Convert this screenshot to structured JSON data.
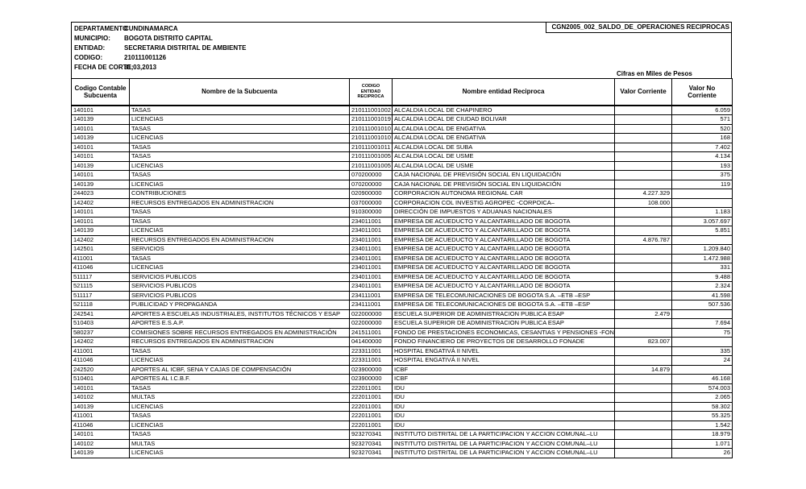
{
  "report": {
    "title": "CGN2005_002_SALDO_DE_OPERACIONES RECIPROCAS",
    "units_note": "Cifras en Miles de Pesos"
  },
  "meta": {
    "rows": [
      {
        "label": "DEPARTAMENTO",
        "value": "CUNDINAMARCA"
      },
      {
        "label": "MUNICIPIO:",
        "value": "BOGOTA DISTRITO CAPITAL"
      },
      {
        "label": "ENTIDAD:",
        "value": "SECRETARIA DISTRITAL DE AMBIENTE"
      },
      {
        "label": "CODIGO:",
        "value": "210111001126"
      },
      {
        "label": "FECHA DE CORTE:",
        "value": "31,03,2013"
      }
    ]
  },
  "table": {
    "columns": [
      "Codigo Contable Subcuenta",
      "Nombre de la Subcuenta",
      "CODIGO ENTIDAD RECIPROCA",
      "Nombre entidad Reciproca",
      "Valor Corriente",
      "Valor No Corriente"
    ],
    "rows": [
      {
        "codigo": "140101",
        "subcuenta": "TASAS",
        "codigo_entidad": "210111001002",
        "entidad": "ALCALDIA LOCAL DE CHAPINERO",
        "valor_corriente": "",
        "valor_no_corriente": "6.059"
      },
      {
        "codigo": "140139",
        "subcuenta": "LICENCIAS",
        "codigo_entidad": "210111001019",
        "entidad": "ALCALDIA LOCAL DE CIUDAD BOLIVAR",
        "valor_corriente": "",
        "valor_no_corriente": "571"
      },
      {
        "codigo": "140101",
        "subcuenta": "TASAS",
        "codigo_entidad": "210111001010",
        "entidad": "ALCALDIA LOCAL DE ENGATIVA",
        "valor_corriente": "",
        "valor_no_corriente": "520"
      },
      {
        "codigo": "140139",
        "subcuenta": "LICENCIAS",
        "codigo_entidad": "210111001010",
        "entidad": "ALCALDIA LOCAL DE ENGATIVA",
        "valor_corriente": "",
        "valor_no_corriente": "168"
      },
      {
        "codigo": "140101",
        "subcuenta": "TASAS",
        "codigo_entidad": "210111001011",
        "entidad": "ALCALDIA LOCAL DE SUBA",
        "valor_corriente": "",
        "valor_no_corriente": "7.402"
      },
      {
        "codigo": "140101",
        "subcuenta": "TASAS",
        "codigo_entidad": "210111001005",
        "entidad": "ALCALDIA LOCAL DE USME",
        "valor_corriente": "",
        "valor_no_corriente": "4.134"
      },
      {
        "codigo": "140139",
        "subcuenta": "LICENCIAS",
        "codigo_entidad": "210111001005",
        "entidad": "ALCALDIA LOCAL DE USME",
        "valor_corriente": "",
        "valor_no_corriente": "193"
      },
      {
        "codigo": "140101",
        "subcuenta": "TASAS",
        "codigo_entidad": "070200000",
        "entidad": "CAJA NACIONAL DE PREVISIÓN SOCIAL EN LIQUIDACIÓN",
        "valor_corriente": "",
        "valor_no_corriente": "375"
      },
      {
        "codigo": "140139",
        "subcuenta": "LICENCIAS",
        "codigo_entidad": "070200000",
        "entidad": "CAJA NACIONAL DE PREVISIÓN SOCIAL EN LIQUIDACIÓN",
        "valor_corriente": "",
        "valor_no_corriente": "119"
      },
      {
        "codigo": "244023",
        "subcuenta": "CONTRIBUCIONES",
        "codigo_entidad": "020900000",
        "entidad": "CORPORACION AUTONOMA REGIONAL CAR",
        "valor_corriente": "4.227.329",
        "valor_no_corriente": ""
      },
      {
        "codigo": "142402",
        "subcuenta": "RECURSOS ENTREGADOS EN ADMINISTRACION",
        "codigo_entidad": "037000000",
        "entidad": "CORPORACION COL INVESTIG AGROPEC -CORPOICA–",
        "valor_corriente": "108.000",
        "valor_no_corriente": ""
      },
      {
        "codigo": "140101",
        "subcuenta": "TASAS",
        "codigo_entidad": "910300000",
        "entidad": "DIRECCIÓN DE IMPUESTOS Y ADUANAS NACIONALES",
        "valor_corriente": "",
        "valor_no_corriente": "1.183"
      },
      {
        "codigo": "140101",
        "subcuenta": "TASAS",
        "codigo_entidad": "234011001",
        "entidad": "EMPRESA DE ACUEDUCTO Y ALCANTARILLADO DE BOGOTA",
        "valor_corriente": "",
        "valor_no_corriente": "3.057.697"
      },
      {
        "codigo": "140139",
        "subcuenta": "LICENCIAS",
        "codigo_entidad": "234011001",
        "entidad": "EMPRESA DE ACUEDUCTO Y ALCANTARILLADO DE BOGOTA",
        "valor_corriente": "",
        "valor_no_corriente": "5.851"
      },
      {
        "codigo": "142402",
        "subcuenta": "RECURSOS ENTREGADOS EN ADMINISTRACION",
        "codigo_entidad": "234011001",
        "entidad": "EMPRESA DE ACUEDUCTO Y ALCANTARILLADO DE BOGOTA",
        "valor_corriente": "4.876.787",
        "valor_no_corriente": ""
      },
      {
        "codigo": "142501",
        "subcuenta": "SERVICIOS",
        "codigo_entidad": "234011001",
        "entidad": "EMPRESA DE ACUEDUCTO Y ALCANTARILLADO DE BOGOTA",
        "valor_corriente": "",
        "valor_no_corriente": "1.209.840"
      },
      {
        "codigo": "411001",
        "subcuenta": "TASAS",
        "codigo_entidad": "234011001",
        "entidad": "EMPRESA DE ACUEDUCTO Y ALCANTARILLADO DE BOGOTA",
        "valor_corriente": "",
        "valor_no_corriente": "1.472.988"
      },
      {
        "codigo": "411046",
        "subcuenta": "LICENCIAS",
        "codigo_entidad": "234011001",
        "entidad": "EMPRESA DE ACUEDUCTO Y ALCANTARILLADO DE BOGOTA",
        "valor_corriente": "",
        "valor_no_corriente": "331"
      },
      {
        "codigo": "511117",
        "subcuenta": "SERVICIOS PUBLICOS",
        "codigo_entidad": "234011001",
        "entidad": "EMPRESA DE ACUEDUCTO Y ALCANTARILLADO DE BOGOTA",
        "valor_corriente": "",
        "valor_no_corriente": "9.488"
      },
      {
        "codigo": "521115",
        "subcuenta": "SERVICIOS PUBLICOS",
        "codigo_entidad": "234011001",
        "entidad": "EMPRESA DE ACUEDUCTO Y ALCANTARILLADO DE BOGOTA",
        "valor_corriente": "",
        "valor_no_corriente": "2.324"
      },
      {
        "codigo": "511117",
        "subcuenta": "SERVICIOS PUBLICOS",
        "codigo_entidad": "234111001",
        "entidad": "EMPRESA DE TELECOMUNICACIONES DE BOGOTA S.A. –ETB –ESP",
        "valor_corriente": "",
        "valor_no_corriente": "41.598"
      },
      {
        "codigo": "521118",
        "subcuenta": "PUBLICIDAD Y PROPAGANDA",
        "codigo_entidad": "234111001",
        "entidad": "EMPRESA DE TELECOMUNICACIONES DE BOGOTA S.A. –ETB –ESP",
        "valor_corriente": "",
        "valor_no_corriente": "507.536"
      },
      {
        "codigo": "242541",
        "subcuenta": "APORTES A ESCUELAS INDUSTRIALES, INSTITUTOS TÉCNICOS Y ESAP",
        "codigo_entidad": "022000000",
        "entidad": "ESCUELA SUPERIOR DE ADMINISTRACION PUBLICA ESAP",
        "valor_corriente": "2.479",
        "valor_no_corriente": ""
      },
      {
        "codigo": "510403",
        "subcuenta": "APORTES E.S.A.P.",
        "codigo_entidad": "022000000",
        "entidad": "ESCUELA SUPERIOR DE ADMINISTRACION PUBLICA ESAP",
        "valor_corriente": "",
        "valor_no_corriente": "7.694"
      },
      {
        "codigo": "580237",
        "subcuenta": "COMISIONES SOBRE RECURSOS ENTREGADOS EN ADMINISTRACIÓN",
        "codigo_entidad": "241511001",
        "entidad": "FONDO DE PRESTACIONES ECONOMICAS, CESANTIAS Y PENSIONES -FON",
        "valor_corriente": "",
        "valor_no_corriente": "75"
      },
      {
        "codigo": "142402",
        "subcuenta": "RECURSOS ENTREGADOS EN ADMINISTRACION",
        "codigo_entidad": "041400000",
        "entidad": "FONDO FINANCIERO DE PROYECTOS DE DESARROLLO FONADE",
        "valor_corriente": "823.007",
        "valor_no_corriente": ""
      },
      {
        "codigo": "411001",
        "subcuenta": "TASAS",
        "codigo_entidad": "223311001",
        "entidad": "HOSPITAL ENGATIVÁ II NIVEL",
        "valor_corriente": "",
        "valor_no_corriente": "335"
      },
      {
        "codigo": "411046",
        "subcuenta": "LICENCIAS",
        "codigo_entidad": "223311001",
        "entidad": "HOSPITAL ENGATIVÁ II NIVEL",
        "valor_corriente": "",
        "valor_no_corriente": "24"
      },
      {
        "codigo": "242520",
        "subcuenta": "APORTES AL ICBF, SENA Y CAJAS DE COMPENSACIÓN",
        "codigo_entidad": "023900000",
        "entidad": "ICBF",
        "valor_corriente": "14.879",
        "valor_no_corriente": ""
      },
      {
        "codigo": "510401",
        "subcuenta": "APORTES AL I.C.B.F.",
        "codigo_entidad": "023900000",
        "entidad": "ICBF",
        "valor_corriente": "",
        "valor_no_corriente": "46.168"
      },
      {
        "codigo": "140101",
        "subcuenta": "TASAS",
        "codigo_entidad": "222011001",
        "entidad": "IDU",
        "valor_corriente": "",
        "valor_no_corriente": "574.003"
      },
      {
        "codigo": "140102",
        "subcuenta": "MULTAS",
        "codigo_entidad": "222011001",
        "entidad": "IDU",
        "valor_corriente": "",
        "valor_no_corriente": "2.065"
      },
      {
        "codigo": "140139",
        "subcuenta": "LICENCIAS",
        "codigo_entidad": "222011001",
        "entidad": "IDU",
        "valor_corriente": "",
        "valor_no_corriente": "58.302"
      },
      {
        "codigo": "411001",
        "subcuenta": "TASAS",
        "codigo_entidad": "222011001",
        "entidad": "IDU",
        "valor_corriente": "",
        "valor_no_corriente": "55.325"
      },
      {
        "codigo": "411046",
        "subcuenta": "LICENCIAS",
        "codigo_entidad": "222011001",
        "entidad": "IDU",
        "valor_corriente": "",
        "valor_no_corriente": "1.542"
      },
      {
        "codigo": "140101",
        "subcuenta": "TASAS",
        "codigo_entidad": "923270341",
        "entidad": "INSTITUTO DISTRITAL DE LA PARTICIPACION Y ACCION COMUNAL–LU",
        "valor_corriente": "",
        "valor_no_corriente": "18.979"
      },
      {
        "codigo": "140102",
        "subcuenta": "MULTAS",
        "codigo_entidad": "923270341",
        "entidad": "INSTITUTO DISTRITAL DE LA PARTICIPACION Y ACCION COMUNAL–LU",
        "valor_corriente": "",
        "valor_no_corriente": "1.071"
      },
      {
        "codigo": "140139",
        "subcuenta": "LICENCIAS",
        "codigo_entidad": "923270341",
        "entidad": "INSTITUTO DISTRITAL DE LA PARTICIPACION Y ACCION COMUNAL–LU",
        "valor_corriente": "",
        "valor_no_corriente": "26"
      }
    ]
  }
}
